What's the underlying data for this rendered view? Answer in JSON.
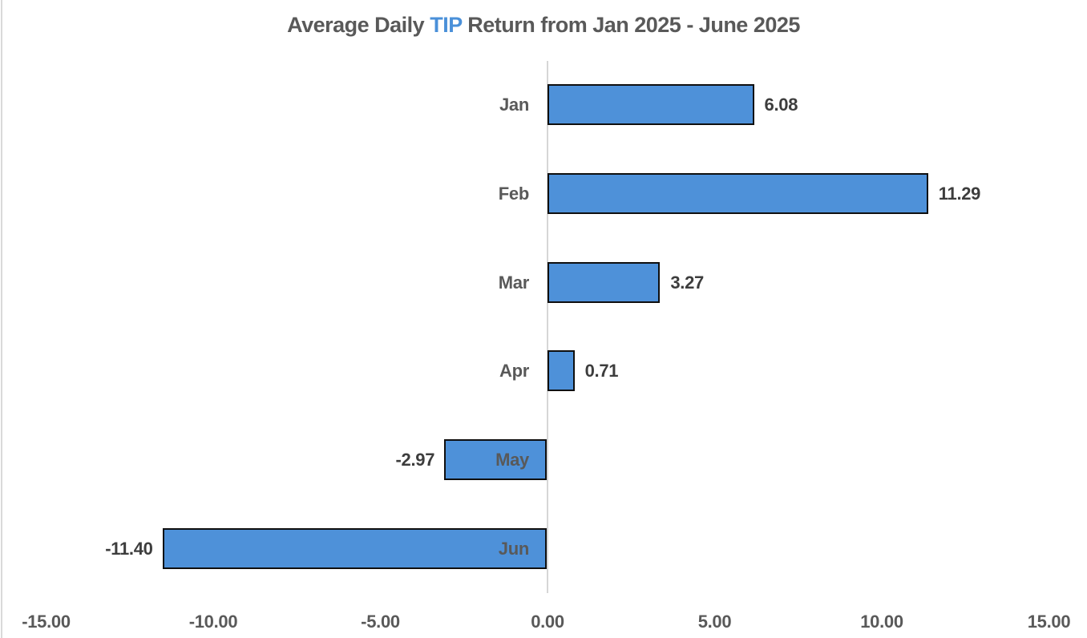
{
  "title": {
    "full": "Average Daily TIP Return from Jan 2025 - June 2025",
    "segments": [
      {
        "text": "Average Daily ",
        "color": "#595959"
      },
      {
        "text": "TIP",
        "color": "#4a90d9"
      },
      {
        "text": " Return from Jan 2025 - June 2025",
        "color": "#595959"
      }
    ]
  },
  "colors": {
    "bar_fill": "#4e91d9",
    "bar_border": "#0f0f0f",
    "axis_line": "#d6d6d6",
    "title_text": "#595959",
    "accent_blue": "#4a90d9",
    "category_text": "#595959",
    "value_text": "#3d3d3d",
    "background": "#ffffff"
  },
  "chart_data": {
    "type": "bar",
    "orientation": "horizontal",
    "title": "Average Daily TIP Return from Jan 2025 - June 2025",
    "categories": [
      "Jan",
      "Feb",
      "Mar",
      "Apr",
      "May",
      "Jun"
    ],
    "values": [
      6.08,
      11.29,
      3.27,
      0.71,
      -2.97,
      -11.4
    ],
    "value_labels": [
      "6.08",
      "11.29",
      "3.27",
      "0.71",
      "-2.97",
      "-11.40"
    ],
    "xlabel": "",
    "ylabel": "",
    "xlim": [
      -15,
      15
    ],
    "x_ticks": [
      -15,
      -10,
      -5,
      0,
      5,
      10,
      15
    ],
    "x_tick_labels": [
      "-15.00",
      "-10.00",
      "-5.00",
      "0.00",
      "5.00",
      "10.00",
      "15.00"
    ],
    "grid": false,
    "legend": false,
    "data_labels_shown": true
  }
}
